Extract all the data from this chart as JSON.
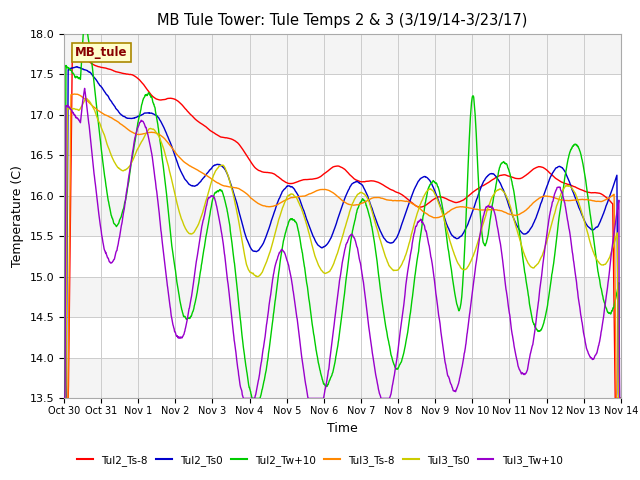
{
  "title": "MB Tule Tower: Tule Temps 2 & 3 (3/19/14-3/23/17)",
  "xlabel": "Time",
  "ylabel": "Temperature (C)",
  "ylim": [
    13.5,
    18.0
  ],
  "yticks": [
    13.5,
    14.0,
    14.5,
    15.0,
    15.5,
    16.0,
    16.5,
    17.0,
    17.5,
    18.0
  ],
  "xtick_labels": [
    "Oct 30",
    "Oct 31",
    "Nov 1",
    "Nov 2",
    "Nov 3",
    "Nov 4",
    "Nov 5",
    "Nov 6",
    "Nov 7",
    "Nov 8",
    "Nov 9",
    "Nov 10",
    "Nov 11",
    "Nov 12",
    "Nov 13",
    "Nov 14"
  ],
  "legend_labels": [
    "Tul2_Ts-8",
    "Tul2_Ts0",
    "Tul2_Tw+10",
    "Tul3_Ts-8",
    "Tul3_Ts0",
    "Tul3_Tw+10"
  ],
  "legend_colors": [
    "#ff0000",
    "#0000cc",
    "#00cc00",
    "#ff8800",
    "#cccc00",
    "#9900cc"
  ],
  "watermark_text": "MB_tule",
  "watermark_color": "#880000",
  "watermark_bg": "#ffffcc",
  "watermark_border": "#aa8800",
  "plot_bg": "#e8e8e8",
  "band_light": "#f4f4f4",
  "grid_color": "#cccccc",
  "n_points": 2000
}
